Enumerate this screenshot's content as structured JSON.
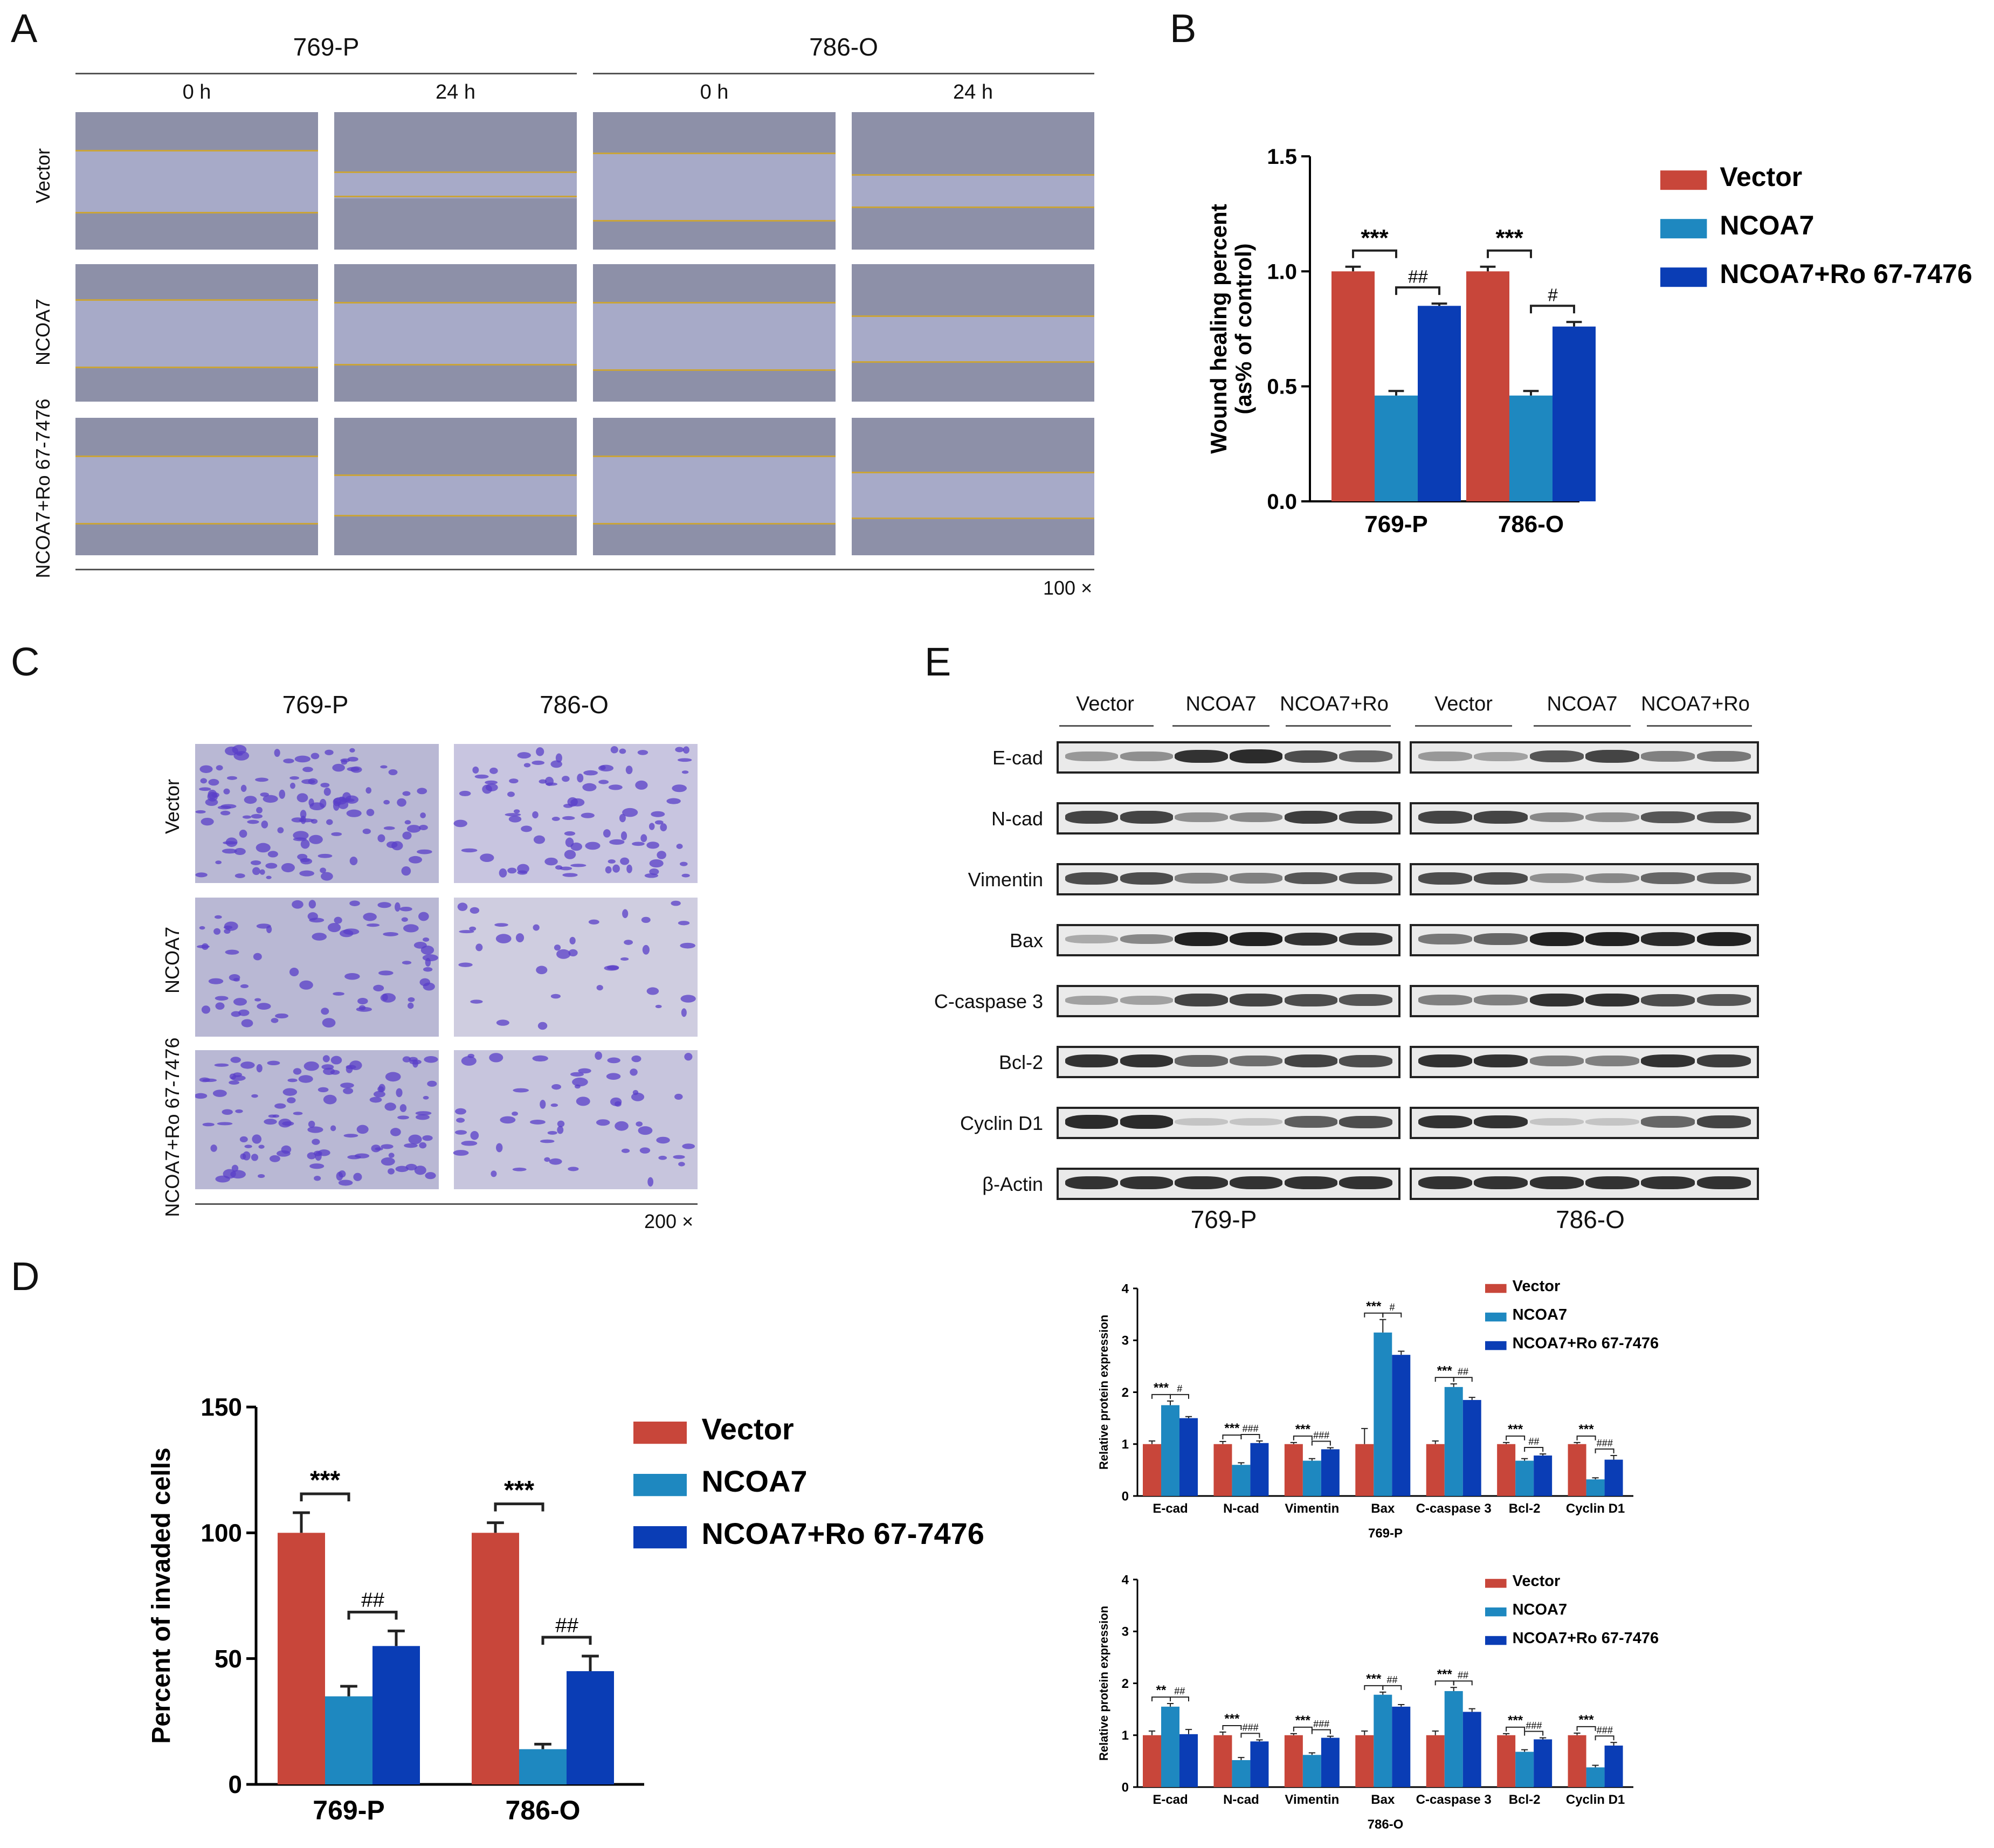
{
  "panels": {
    "A": "A",
    "B": "B",
    "C": "C",
    "D": "D",
    "E": "E"
  },
  "panelA": {
    "cell_lines": [
      "769-P",
      "786-O"
    ],
    "timepoints": [
      "0 h",
      "24 h",
      "0 h",
      "24 h"
    ],
    "rows": [
      "Vector",
      "NCOA7",
      "NCOA7+Ro 67-7476"
    ],
    "magnification": "100 ×"
  },
  "panelC": {
    "cell_lines": [
      "769-P",
      "786-O"
    ],
    "rows": [
      "Vector",
      "NCOA7",
      "NCOA7+Ro 67-7476"
    ],
    "magnification": "200 ×"
  },
  "panelE": {
    "lanes": [
      "Vector",
      "NCOA7",
      "NCOA7+Ro",
      "Vector",
      "NCOA7",
      "NCOA7+Ro"
    ],
    "proteins": [
      "E-cad",
      "N-cad",
      "Vimentin",
      "Bax",
      "C-caspase 3",
      "Bcl-2",
      "Cyclin D1",
      "β-Actin"
    ],
    "cell_lines": [
      "769-P",
      "786-O"
    ]
  },
  "colors": {
    "vector": "#c8463a",
    "ncoa7": "#1e88c0",
    "ncoa7_ro": "#0a3db5"
  },
  "chart_data": [
    {
      "id": "B",
      "type": "bar",
      "categories": [
        "769-P",
        "786-O"
      ],
      "series": [
        {
          "name": "Vector",
          "values": [
            1.0,
            1.0
          ],
          "errors": [
            0.02,
            0.02
          ]
        },
        {
          "name": "NCOA7",
          "values": [
            0.46,
            0.46
          ],
          "errors": [
            0.02,
            0.02
          ]
        },
        {
          "name": "NCOA7+Ro 67-7476",
          "values": [
            0.85,
            0.76
          ],
          "errors": [
            0.01,
            0.02
          ]
        }
      ],
      "ylabel": "Wound healing percent (as% of control)",
      "ylim": [
        0,
        1.5
      ],
      "yticks": [
        "0.0",
        "0.5",
        "1.0",
        "1.5"
      ],
      "annotations": [
        [
          "***",
          "##"
        ],
        [
          "***",
          "#"
        ]
      ],
      "legend": "right"
    },
    {
      "id": "D",
      "type": "bar",
      "categories": [
        "769-P",
        "786-O"
      ],
      "series": [
        {
          "name": "Vector",
          "values": [
            100,
            100
          ],
          "errors": [
            8,
            4
          ]
        },
        {
          "name": "NCOA7",
          "values": [
            35,
            14
          ],
          "errors": [
            4,
            2
          ]
        },
        {
          "name": "NCOA7+Ro 67-7476",
          "values": [
            55,
            45
          ],
          "errors": [
            6,
            6
          ]
        }
      ],
      "ylabel": "Percent of invaded cells",
      "ylim": [
        0,
        150
      ],
      "yticks": [
        "0",
        "50",
        "100",
        "150"
      ],
      "annotations": [
        [
          "***",
          "##"
        ],
        [
          "***",
          "##"
        ]
      ],
      "legend": "right"
    },
    {
      "id": "E1",
      "type": "bar",
      "title": "769-P",
      "categories": [
        "E-cad",
        "N-cad",
        "Vimentin",
        "Bax",
        "C-caspase 3",
        "Bcl-2",
        "Cyclin D1"
      ],
      "series": [
        {
          "name": "Vector",
          "values": [
            1,
            1,
            1,
            1,
            1,
            1,
            1
          ],
          "errors": [
            0.06,
            0.05,
            0.03,
            0.3,
            0.06,
            0.03,
            0.03
          ]
        },
        {
          "name": "NCOA7",
          "values": [
            1.75,
            0.6,
            0.68,
            3.15,
            2.1,
            0.68,
            0.32
          ],
          "errors": [
            0.08,
            0.04,
            0.04,
            0.25,
            0.06,
            0.04,
            0.03
          ]
        },
        {
          "name": "NCOA7+Ro 67-7476",
          "values": [
            1.5,
            1.02,
            0.9,
            2.72,
            1.85,
            0.78,
            0.7
          ],
          "errors": [
            0.03,
            0.04,
            0.03,
            0.07,
            0.05,
            0.03,
            0.08
          ]
        }
      ],
      "ylabel": "Relative protein expression",
      "ylim": [
        0,
        4
      ],
      "yticks": [
        "0",
        "1",
        "2",
        "3",
        "4"
      ],
      "annotations": [
        [
          "***",
          "#"
        ],
        [
          "***",
          "###"
        ],
        [
          "***",
          "###"
        ],
        [
          "***",
          "#"
        ],
        [
          "***",
          "##"
        ],
        [
          "***",
          "##"
        ],
        [
          "***",
          "###"
        ]
      ],
      "legend": "top-right"
    },
    {
      "id": "E2",
      "type": "bar",
      "title": "786-O",
      "categories": [
        "E-cad",
        "N-cad",
        "Vimentin",
        "Bax",
        "C-caspase 3",
        "Bcl-2",
        "Cyclin D1"
      ],
      "series": [
        {
          "name": "Vector",
          "values": [
            1,
            1,
            1,
            1,
            1,
            1,
            1
          ],
          "errors": [
            0.08,
            0.06,
            0.03,
            0.08,
            0.08,
            0.03,
            0.04
          ]
        },
        {
          "name": "NCOA7",
          "values": [
            1.55,
            0.52,
            0.62,
            1.78,
            1.85,
            0.68,
            0.38
          ],
          "errors": [
            0.06,
            0.05,
            0.04,
            0.05,
            0.07,
            0.04,
            0.04
          ]
        },
        {
          "name": "NCOA7+Ro 67-7476",
          "values": [
            1.02,
            0.88,
            0.95,
            1.55,
            1.45,
            0.92,
            0.8
          ],
          "errors": [
            0.09,
            0.03,
            0.03,
            0.04,
            0.06,
            0.03,
            0.06
          ]
        }
      ],
      "ylabel": "Relative protein expression",
      "ylim": [
        0,
        4
      ],
      "yticks": [
        "0",
        "1",
        "2",
        "3",
        "4"
      ],
      "annotations": [
        [
          "**",
          "##"
        ],
        [
          "***",
          "###"
        ],
        [
          "***",
          "###"
        ],
        [
          "***",
          "##"
        ],
        [
          "***",
          "##"
        ],
        [
          "***",
          "###"
        ],
        [
          "***",
          "###"
        ]
      ],
      "legend": "top-right"
    }
  ]
}
